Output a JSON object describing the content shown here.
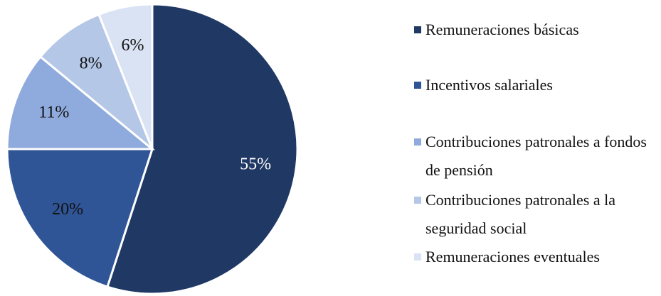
{
  "chart_data": {
    "type": "pie",
    "categories": [
      "Remuneraciones básicas",
      "Incentivos salariales",
      "Contribuciones patronales a fondos de pensión",
      "Contribuciones patronales a la seguridad social",
      "Remuneraciones eventuales"
    ],
    "values": [
      55,
      20,
      11,
      8,
      6
    ],
    "value_labels": [
      "55%",
      "20%",
      "11%",
      "8%",
      "6%"
    ],
    "colors": [
      "#203864",
      "#2f5597",
      "#8faadc",
      "#b4c7e7",
      "#dae3f3"
    ],
    "legend": "right"
  }
}
